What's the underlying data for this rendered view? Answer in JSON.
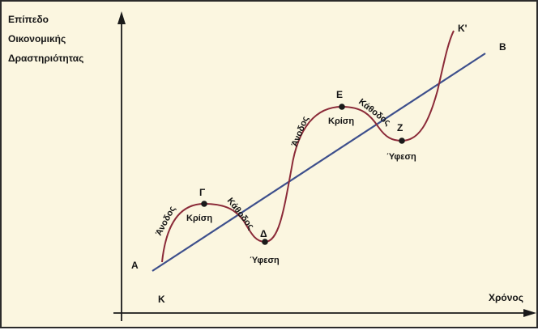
{
  "axes": {
    "y_label_lines": [
      "Επίπεδο",
      "Οικονομικής",
      "Δραστηριότητας"
    ],
    "x_label": "Χρόνος"
  },
  "trend_line": {
    "start_label": "Α",
    "end_label": "Β",
    "color": "#3d4f8c"
  },
  "cycle_curve": {
    "start_label": "Κ",
    "end_label": "Κ'",
    "color": "#8b2a38"
  },
  "points": [
    {
      "letter": "Γ",
      "phase": "Κρίση"
    },
    {
      "letter": "Δ",
      "phase": "Ύφεση"
    },
    {
      "letter": "Ε",
      "phase": "Κρίση"
    },
    {
      "letter": "Ζ",
      "phase": "Ύφεση"
    }
  ],
  "phase_labels": [
    "Άνοδος",
    "Κάθοδος",
    "Άνοδος",
    "Κάθοδος"
  ]
}
